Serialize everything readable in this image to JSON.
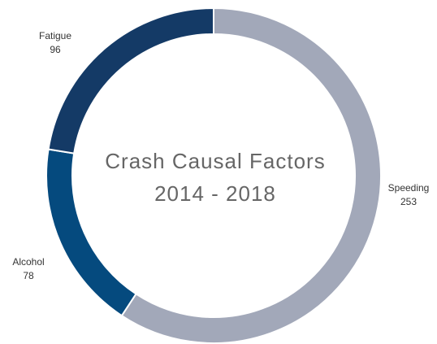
{
  "chart_data": {
    "type": "donut",
    "title": "Crash Causal Factors",
    "subtitle": "2014 - 2018",
    "categories": [
      "Speeding",
      "Alcohol",
      "Fatigue"
    ],
    "values": [
      253,
      78,
      96
    ],
    "colors": [
      "#a2a8b9",
      "#054a7e",
      "#143a66"
    ]
  }
}
